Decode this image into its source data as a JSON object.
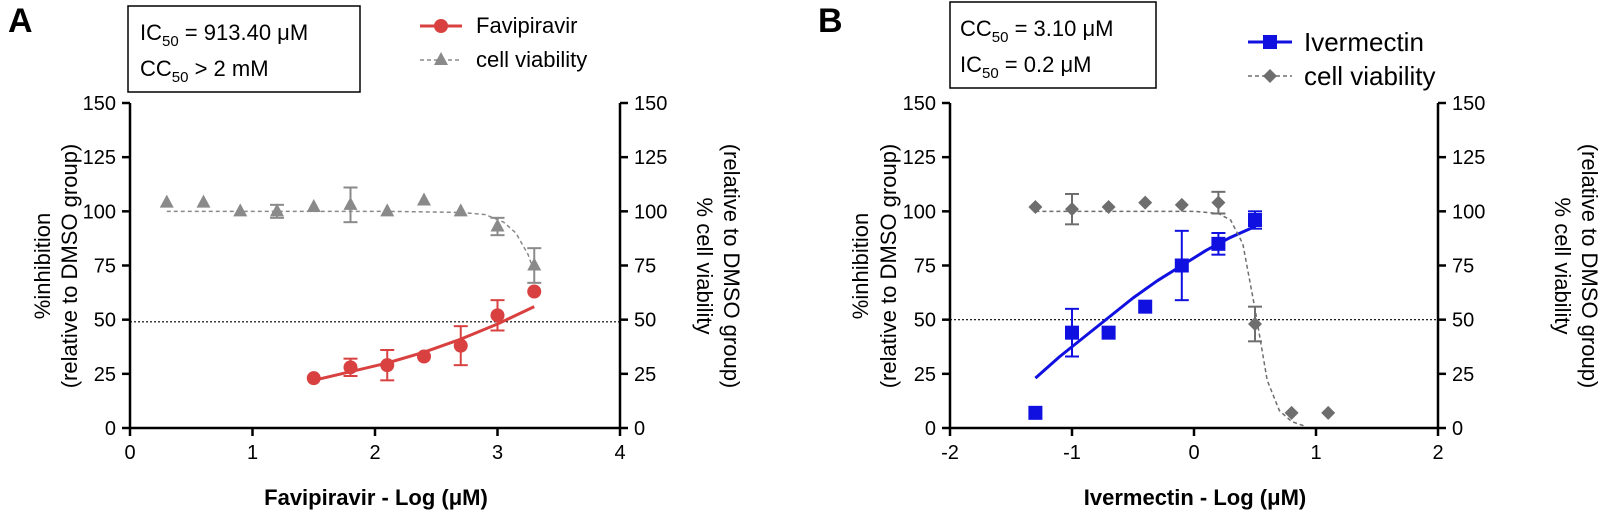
{
  "chart_data": [
    {
      "type": "line",
      "panel_label": "A",
      "xlabel": "Favipiravir - Log (μM)",
      "xlim": [
        0,
        4
      ],
      "xticks": [
        "0",
        "1",
        "2",
        "3",
        "4"
      ],
      "ylabel_left": [
        "%inhibition",
        "(relative to DMSO group)"
      ],
      "ylabel_right": [
        "% cell viability",
        "(relative to DMSO group)"
      ],
      "ylim": [
        0,
        150
      ],
      "yticks": [
        "0",
        "25",
        "50",
        "75",
        "100",
        "125",
        "150"
      ],
      "reference_line": 49,
      "annotation": {
        "line1": {
          "pre": "IC",
          "sub": "50",
          "post": " = 913.40 μM"
        },
        "line2": {
          "pre": "CC",
          "sub": "50",
          "post": " > 2 mM"
        }
      },
      "legend": [
        "Favipiravir",
        "cell viability"
      ],
      "series": [
        {
          "name": "Favipiravir",
          "color": "#d94040",
          "marker": "circle",
          "x": [
            1.5,
            1.8,
            2.1,
            2.4,
            2.7,
            3.0,
            3.3
          ],
          "y": [
            23,
            28,
            29,
            33,
            38,
            52,
            63
          ],
          "err": [
            0,
            4,
            7,
            0,
            9,
            7,
            0
          ],
          "fit_x": [
            1.5,
            1.8,
            2.1,
            2.4,
            2.7,
            3.0,
            3.3
          ],
          "fit_y": [
            22,
            26,
            30,
            35,
            41,
            48,
            56
          ]
        },
        {
          "name": "cell viability",
          "color": "#8a8a8a",
          "marker": "triangle",
          "x": [
            0.3,
            0.6,
            0.9,
            1.2,
            1.5,
            1.8,
            2.1,
            2.4,
            2.7,
            3.0,
            3.3
          ],
          "y": [
            104,
            104,
            100,
            100,
            102,
            103,
            100,
            105,
            100,
            93,
            75
          ],
          "err": [
            0,
            0,
            0,
            3,
            0,
            8,
            0,
            0,
            0,
            4,
            8
          ],
          "fit_x": [
            0.3,
            0.9,
            1.5,
            2.1,
            2.7,
            2.9,
            3.05,
            3.15,
            3.25,
            3.3
          ],
          "fit_y": [
            100,
            100,
            100,
            100,
            99.5,
            98.5,
            95,
            90,
            80,
            72
          ]
        }
      ]
    },
    {
      "type": "line",
      "panel_label": "B",
      "xlabel": "Ivermectin - Log (μM)",
      "xlim": [
        -2,
        2
      ],
      "xticks": [
        "-2",
        "-1",
        "0",
        "1",
        "2"
      ],
      "ylabel_left": [
        "%inhibition",
        "(relative to DMSO group)"
      ],
      "ylabel_right": [
        "% cell viability",
        "(relative to DMSO group)"
      ],
      "ylim": [
        0,
        150
      ],
      "yticks": [
        "0",
        "25",
        "50",
        "75",
        "100",
        "125",
        "150"
      ],
      "reference_line": 50,
      "annotation": {
        "line1": {
          "pre": "CC",
          "sub": "50",
          "post": " = 3.10 μM"
        },
        "line2": {
          "pre": "IC",
          "sub": "50",
          "post": " = 0.2 μM"
        }
      },
      "legend": [
        "Ivermectin",
        "cell viability"
      ],
      "series": [
        {
          "name": "Ivermectin",
          "color": "#1010e0",
          "marker": "square",
          "x": [
            -1.3,
            -1.0,
            -0.7,
            -0.4,
            -0.1,
            0.2,
            0.5
          ],
          "y": [
            7,
            44,
            44,
            56,
            75,
            85,
            96
          ],
          "err": [
            0,
            11,
            0,
            0,
            16,
            5,
            4
          ],
          "fit_x": [
            -1.3,
            -1.1,
            -0.9,
            -0.7,
            -0.5,
            -0.3,
            -0.1,
            0.1,
            0.3,
            0.5
          ],
          "fit_y": [
            23,
            33,
            42,
            51,
            60,
            68,
            75,
            82,
            88,
            93
          ]
        },
        {
          "name": "cell viability",
          "color": "#6e6e6e",
          "marker": "diamond",
          "x": [
            -1.3,
            -1.0,
            -0.7,
            -0.4,
            -0.1,
            0.2,
            0.5,
            0.8,
            1.1
          ],
          "y": [
            102,
            101,
            102,
            104,
            103,
            104,
            48,
            7,
            7
          ],
          "err": [
            0,
            7,
            0,
            0,
            0,
            5,
            8,
            0,
            0
          ],
          "fit_x": [
            -1.3,
            -0.5,
            0.0,
            0.2,
            0.3,
            0.4,
            0.5,
            0.6,
            0.7,
            0.8,
            0.9
          ],
          "fit_y": [
            100,
            100,
            100,
            99,
            96,
            85,
            55,
            22,
            8,
            3,
            1
          ]
        }
      ]
    }
  ]
}
